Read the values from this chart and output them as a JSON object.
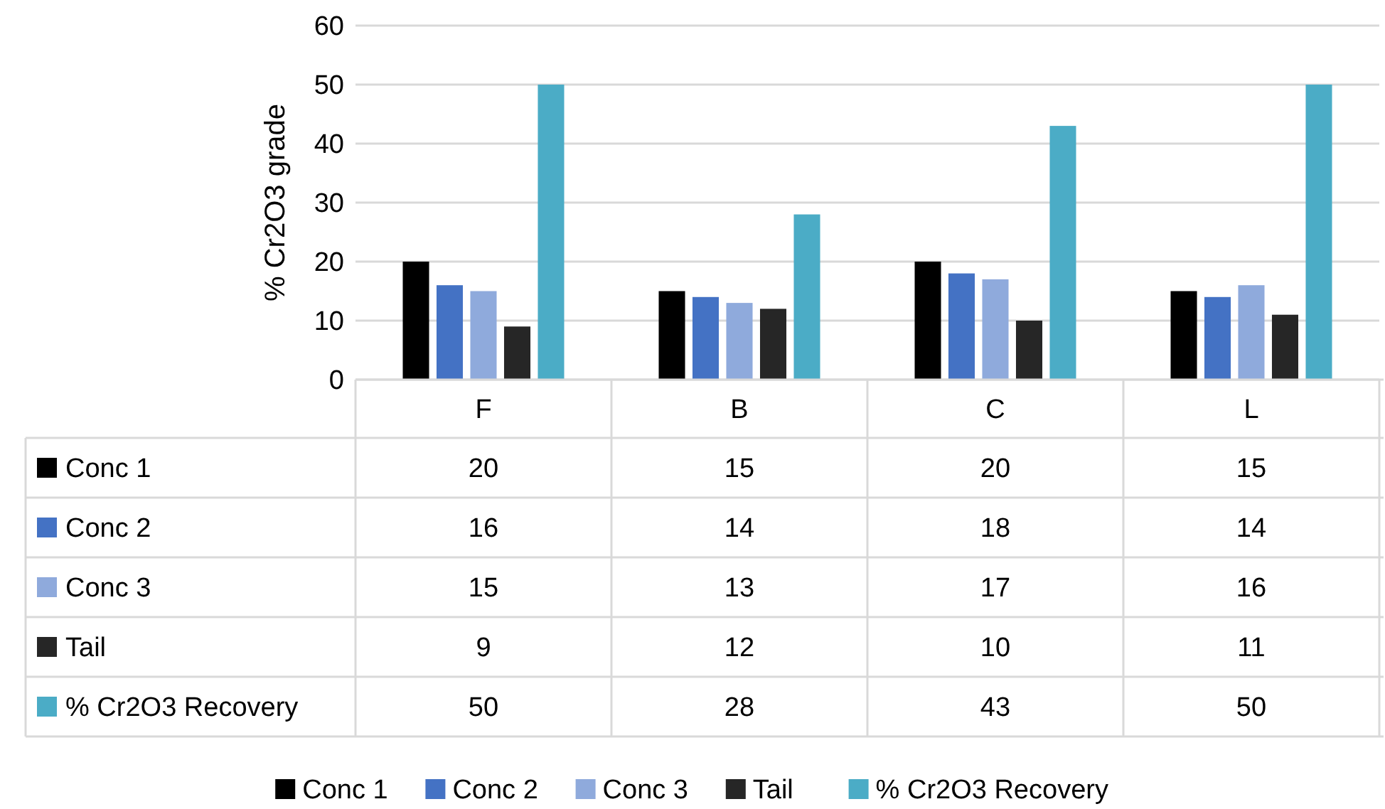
{
  "chart_data": {
    "type": "bar",
    "ylabel": "% Cr2O3 grade",
    "categories": [
      "F",
      "B",
      "C",
      "L"
    ],
    "series": [
      {
        "name": "Conc 1",
        "color": "#000000",
        "values": [
          20,
          15,
          20,
          15
        ]
      },
      {
        "name": "Conc 2",
        "color": "#4472c4",
        "values": [
          16,
          14,
          18,
          14
        ]
      },
      {
        "name": "Conc 3",
        "color": "#8faadc",
        "values": [
          15,
          13,
          17,
          16
        ]
      },
      {
        "name": "Tail",
        "color": "#262626",
        "values": [
          9,
          12,
          10,
          11
        ]
      },
      {
        "name": "% Cr2O3 Recovery",
        "color": "#4bacc6",
        "values": [
          50,
          28,
          43,
          50
        ]
      }
    ],
    "ylim": [
      0,
      60
    ],
    "yticks": [
      0,
      10,
      20,
      30,
      40,
      50,
      60
    ],
    "grid": "y",
    "data_labels": true,
    "legend": "bottom"
  }
}
